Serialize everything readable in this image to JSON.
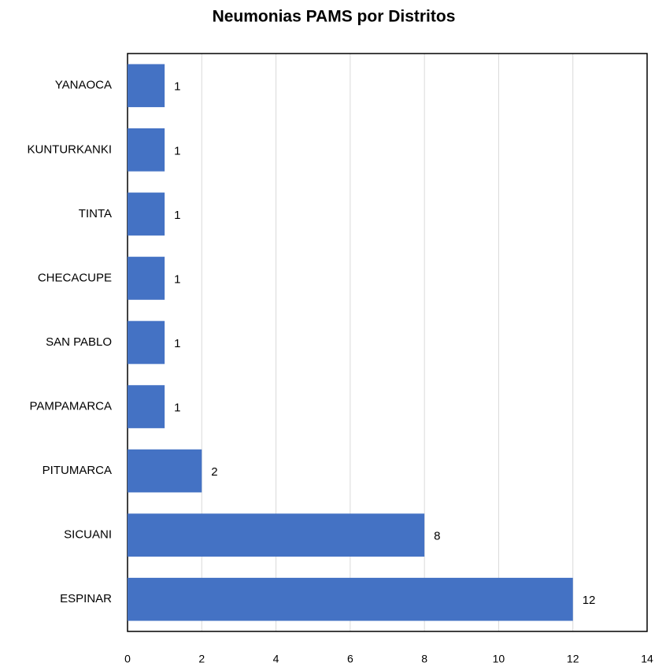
{
  "chart_data": {
    "type": "bar",
    "orientation": "horizontal",
    "title": "Neumonias PAMS por Distritos",
    "categories": [
      "YANAOCA",
      "KUNTURKANKI",
      "TINTA",
      "CHECACUPE",
      "SAN PABLO",
      "PAMPAMARCA",
      "PITUMARCA",
      "SICUANI",
      "ESPINAR"
    ],
    "values": [
      1,
      1,
      1,
      1,
      1,
      1,
      2,
      8,
      12
    ],
    "color": "#4472c4",
    "xlim": [
      0,
      14
    ],
    "xticks": [
      0,
      2,
      4,
      6,
      8,
      10,
      12,
      14
    ],
    "grid": true
  }
}
